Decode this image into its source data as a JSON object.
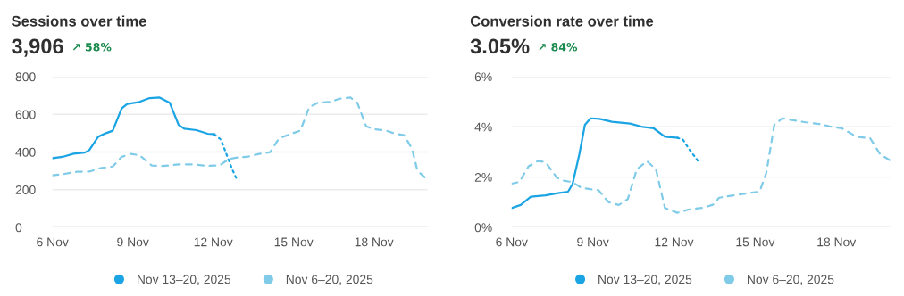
{
  "chart_data": [
    {
      "type": "line",
      "title": "Sessions over time",
      "subtitle": "3,906",
      "annotations": [
        "↗ 58%"
      ],
      "xlim": [
        "2025-11-06",
        "2025-11-20"
      ],
      "xticks": [
        {
          "value": "2025-11-06",
          "label": "6 Nov"
        },
        {
          "value": "2025-11-09",
          "label": "9 Nov"
        },
        {
          "value": "2025-11-12",
          "label": "12 Nov"
        },
        {
          "value": "2025-11-15",
          "label": "15 Nov"
        },
        {
          "value": "2025-11-18",
          "label": "18 Nov"
        }
      ],
      "ylim": [
        0,
        800
      ],
      "yticks": [
        0,
        200,
        400,
        600,
        800
      ],
      "grid": "y",
      "legend": "bottom",
      "series": [
        {
          "name": "Nov 13–20, 2025",
          "color": "#1ba4e4",
          "line_style": "solid",
          "x": [
            "2025-11-06T00:00",
            "2025-11-06T09:00",
            "2025-11-06T19:00",
            "2025-11-07T05:00",
            "2025-11-07T09:00",
            "2025-11-07T17:00",
            "2025-11-08T00:00",
            "2025-11-08T06:00",
            "2025-11-08T14:00",
            "2025-11-08T19:00",
            "2025-11-09T06:00",
            "2025-11-09T15:00",
            "2025-11-10T00:00",
            "2025-11-10T09:00",
            "2025-11-10T17:00",
            "2025-11-10T22:00",
            "2025-11-11T09:00",
            "2025-11-11T19:00",
            "2025-11-12T01:00"
          ],
          "values": [
            367,
            374,
            391,
            397,
            410,
            481,
            500,
            513,
            631,
            655,
            666,
            686,
            689,
            662,
            544,
            524,
            516,
            497,
            494
          ]
        },
        {
          "color": "#1ba4e4",
          "line_style": "dotted",
          "x": [
            "2025-11-12T01:00",
            "2025-11-12T07:00",
            "2025-11-12T12:00",
            "2025-11-12T17:00",
            "2025-11-12T21:00"
          ],
          "values": [
            494,
            465,
            386,
            308,
            257
          ]
        },
        {
          "name": "Nov 6–20, 2025",
          "color": "#7fcbe8",
          "line_style": "dashed",
          "x": [
            "2025-11-06T00:00",
            "2025-11-06T11:00",
            "2025-11-06T22:00",
            "2025-11-07T09:00",
            "2025-11-07T19:00",
            "2025-11-08T06:00",
            "2025-11-08T14:00",
            "2025-11-08T22:00",
            "2025-11-09T06:00",
            "2025-11-09T17:00",
            "2025-11-10T03:00",
            "2025-11-10T17:00",
            "2025-11-11T06:00",
            "2025-11-11T19:00",
            "2025-11-12T06:00",
            "2025-11-12T14:00",
            "2025-11-12T22:00",
            "2025-11-13T06:00",
            "2025-11-13T17:00",
            "2025-11-14T03:00",
            "2025-11-14T11:00",
            "2025-11-14T22:00",
            "2025-11-15T06:00",
            "2025-11-15T14:00",
            "2025-11-15T22:00",
            "2025-11-16T09:00",
            "2025-11-16T17:00",
            "2025-11-17T03:00",
            "2025-11-17T09:00",
            "2025-11-17T17:00",
            "2025-11-18T00:00",
            "2025-11-18T11:00",
            "2025-11-18T19:00",
            "2025-11-19T03:00",
            "2025-11-19T10:00",
            "2025-11-19T15:00",
            "2025-11-20T00:00"
          ],
          "values": [
            276,
            284,
            295,
            296,
            314,
            323,
            374,
            390,
            383,
            328,
            326,
            334,
            334,
            326,
            330,
            363,
            371,
            374,
            390,
            399,
            473,
            497,
            513,
            639,
            662,
            666,
            683,
            689,
            662,
            536,
            521,
            513,
            497,
            489,
            418,
            300,
            252
          ]
        }
      ]
    },
    {
      "type": "line",
      "title": "Conversion rate over time",
      "subtitle": "3.05%",
      "annotations": [
        "↗ 84%"
      ],
      "xlim": [
        "2025-11-06",
        "2025-11-20"
      ],
      "xticks": [
        {
          "value": "2025-11-06",
          "label": "6 Nov"
        },
        {
          "value": "2025-11-09",
          "label": "9 Nov"
        },
        {
          "value": "2025-11-12",
          "label": "12 Nov"
        },
        {
          "value": "2025-11-15",
          "label": "15 Nov"
        },
        {
          "value": "2025-11-18",
          "label": "18 Nov"
        }
      ],
      "ylim": [
        0,
        6
      ],
      "yticks": [
        {
          "value": 0,
          "label": "0%"
        },
        {
          "value": 2,
          "label": "2%"
        },
        {
          "value": 4,
          "label": "4%"
        },
        {
          "value": 6,
          "label": "6%"
        }
      ],
      "grid": "y",
      "legend": "bottom",
      "series": [
        {
          "name": "Nov 13–20, 2025",
          "color": "#1ba4e4",
          "line_style": "solid",
          "x": [
            "2025-11-06T00:00",
            "2025-11-06T08:00",
            "2025-11-06T17:00",
            "2025-11-07T06:00",
            "2025-11-07T17:00",
            "2025-11-08T02:00",
            "2025-11-08T06:00",
            "2025-11-08T12:00",
            "2025-11-08T17:00",
            "2025-11-08T22:00",
            "2025-11-09T06:00",
            "2025-11-09T17:00",
            "2025-11-10T09:00",
            "2025-11-10T19:00",
            "2025-11-11T06:00",
            "2025-11-11T16:00",
            "2025-11-12T03:00"
          ],
          "values": [
            0.77,
            0.89,
            1.22,
            1.27,
            1.36,
            1.42,
            1.72,
            2.9,
            4.08,
            4.34,
            4.32,
            4.2,
            4.13,
            4.01,
            3.94,
            3.61,
            3.57
          ]
        },
        {
          "color": "#1ba4e4",
          "line_style": "dotted",
          "x": [
            "2025-11-12T03:00",
            "2025-11-12T08:00",
            "2025-11-12T13:00",
            "2025-11-12T21:00"
          ],
          "values": [
            3.57,
            3.49,
            3.14,
            2.66
          ]
        },
        {
          "name": "Nov 6–20, 2025",
          "color": "#7fcbe8",
          "line_style": "dashed",
          "x": [
            "2025-11-06T00:00",
            "2025-11-06T07:00",
            "2025-11-06T15:00",
            "2025-11-06T23:00",
            "2025-11-07T06:00",
            "2025-11-07T16:00",
            "2025-11-07T22:00",
            "2025-11-08T06:00",
            "2025-11-08T14:00",
            "2025-11-09T05:00",
            "2025-11-09T14:00",
            "2025-11-09T23:00",
            "2025-11-10T07:00",
            "2025-11-10T15:00",
            "2025-11-11T00:00",
            "2025-11-11T08:00",
            "2025-11-11T16:00",
            "2025-11-12T03:00",
            "2025-11-12T13:00",
            "2025-11-13T03:00",
            "2025-11-13T11:00",
            "2025-11-13T16:00",
            "2025-11-14T05:00",
            "2025-11-14T18:00",
            "2025-11-15T04:00",
            "2025-11-15T10:00",
            "2025-11-15T17:00",
            "2025-11-16T00:00",
            "2025-11-16T10:00",
            "2025-11-16T21:00",
            "2025-11-17T10:00",
            "2025-11-17T18:00",
            "2025-11-18T05:00",
            "2025-11-18T18:00",
            "2025-11-19T06:00",
            "2025-11-19T15:00",
            "2025-11-20T00:00"
          ],
          "values": [
            1.74,
            1.81,
            2.43,
            2.64,
            2.6,
            1.98,
            1.86,
            1.8,
            1.57,
            1.48,
            1.0,
            0.89,
            1.12,
            2.31,
            2.64,
            2.31,
            0.77,
            0.58,
            0.71,
            0.79,
            0.91,
            1.18,
            1.27,
            1.36,
            1.42,
            2.19,
            4.08,
            4.34,
            4.26,
            4.18,
            4.11,
            4.02,
            3.94,
            3.61,
            3.55,
            2.9,
            2.66
          ]
        }
      ]
    }
  ]
}
